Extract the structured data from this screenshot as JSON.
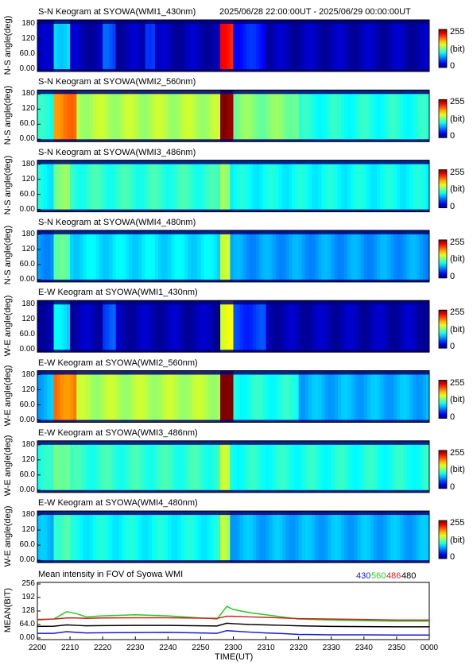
{
  "header": {
    "date_range": "2025/06/28 22:00:00UT - 2025/06/29 00:00:00UT"
  },
  "keograms": [
    {
      "title": "S-N Keogram at SYOWA(WMI1_430nm)",
      "ylabel": "N-S angle(deg)",
      "bands": [
        {
          "start": 2205,
          "end": 2210,
          "level": 0.35
        },
        {
          "start": 2220,
          "end": 2224,
          "level": 0.2
        },
        {
          "start": 2233,
          "end": 2236,
          "level": 0.2
        },
        {
          "start": 2256,
          "end": 2260,
          "level": 0.85
        },
        {
          "start": 2260,
          "end": 2310,
          "level": 0.15
        }
      ],
      "base": 0.05
    },
    {
      "title": "S-N Keogram at SYOWA(WMI2_560nm)",
      "ylabel": "N-S angle(deg)",
      "bands": [
        {
          "start": 2205,
          "end": 2212,
          "level": 0.75
        },
        {
          "start": 2212,
          "end": 2256,
          "level": 0.55
        },
        {
          "start": 2256,
          "end": 2260,
          "level": 1.0
        },
        {
          "start": 2260,
          "end": 2320,
          "level": 0.5
        }
      ],
      "base": 0.4
    },
    {
      "title": "S-N Keogram at SYOWA(WMI3_486nm)",
      "ylabel": "N-S angle(deg)",
      "bands": [
        {
          "start": 2205,
          "end": 2210,
          "level": 0.5
        },
        {
          "start": 2256,
          "end": 2259,
          "level": 0.55
        },
        {
          "start": 2210,
          "end": 2256,
          "level": 0.42
        }
      ],
      "base": 0.38
    },
    {
      "title": "S-N Keogram at SYOWA(WMI4_480nm)",
      "ylabel": "N-S angle(deg)",
      "bands": [
        {
          "start": 2205,
          "end": 2210,
          "level": 0.45
        },
        {
          "start": 2256,
          "end": 2259,
          "level": 0.6
        },
        {
          "start": 2210,
          "end": 2256,
          "level": 0.35
        }
      ],
      "base": 0.28
    },
    {
      "title": "E-W Keogram at SYOWA(WMI1_430nm)",
      "ylabel": "W-E angle(deg)",
      "bands": [
        {
          "start": 2205,
          "end": 2210,
          "level": 0.35
        },
        {
          "start": 2220,
          "end": 2224,
          "level": 0.2
        },
        {
          "start": 2256,
          "end": 2260,
          "level": 0.6
        },
        {
          "start": 2260,
          "end": 2310,
          "level": 0.18
        }
      ],
      "base": 0.05
    },
    {
      "title": "E-W Keogram at SYOWA(WMI2_560nm)",
      "ylabel": "W-E angle(deg)",
      "bands": [
        {
          "start": 2205,
          "end": 2212,
          "level": 0.75
        },
        {
          "start": 2212,
          "end": 2256,
          "level": 0.55
        },
        {
          "start": 2256,
          "end": 2260,
          "level": 1.0
        },
        {
          "start": 2260,
          "end": 2320,
          "level": 0.4
        }
      ],
      "base": 0.3
    },
    {
      "title": "E-W Keogram at SYOWA(WMI3_486nm)",
      "ylabel": "W-E angle(deg)",
      "bands": [
        {
          "start": 2205,
          "end": 2210,
          "level": 0.5
        },
        {
          "start": 2256,
          "end": 2259,
          "level": 0.55
        },
        {
          "start": 2210,
          "end": 2256,
          "level": 0.42
        }
      ],
      "base": 0.4
    },
    {
      "title": "E-W Keogram at SYOWA(WMI4_480nm)",
      "ylabel": "W-E angle(deg)",
      "bands": [
        {
          "start": 2205,
          "end": 2210,
          "level": 0.45
        },
        {
          "start": 2256,
          "end": 2259,
          "level": 0.55
        },
        {
          "start": 2210,
          "end": 2256,
          "level": 0.38
        }
      ],
      "base": 0.3
    }
  ],
  "keogram_yticks": [
    "180",
    "120",
    "60.0",
    "0.00"
  ],
  "colorbar": {
    "max": "255",
    "unit": "(bit)",
    "min": "0"
  },
  "mean_panel": {
    "title": "Mean intensity in FOV of Syowa WMI",
    "ylabel": "MEAN(BIT)",
    "yticks": [
      "256",
      "192",
      "128",
      "64.0",
      "0.00"
    ],
    "legend": [
      {
        "label": "430",
        "color": "#1a1ac8"
      },
      {
        "label": "560",
        "color": "#22cc22"
      },
      {
        "label": "486",
        "color": "#cc2222"
      },
      {
        "label": "480",
        "color": "#000000"
      }
    ]
  },
  "xaxis": {
    "ticks": [
      "2200",
      "2210",
      "2220",
      "2230",
      "2240",
      "2250",
      "2300",
      "2310",
      "2320",
      "2330",
      "2340",
      "2350",
      "0000"
    ],
    "label": "TIME(UT)"
  },
  "chart_data": {
    "type": "line",
    "title": "Mean intensity in FOV of Syowa WMI",
    "xlabel": "TIME(UT)",
    "ylabel": "MEAN(BIT)",
    "ylim": [
      0,
      256
    ],
    "x_minutes": [
      0,
      5,
      9,
      12,
      15,
      20,
      30,
      40,
      50,
      55,
      58,
      60,
      65,
      70,
      75,
      80,
      90,
      100,
      110,
      120
    ],
    "series": [
      {
        "name": "430",
        "color": "#1a1ac8",
        "values": [
          22,
          22,
          30,
          27,
          24,
          25,
          26,
          27,
          24,
          22,
          35,
          33,
          28,
          24,
          21,
          17,
          15,
          15,
          14,
          14
        ]
      },
      {
        "name": "560",
        "color": "#22cc22",
        "values": [
          85,
          90,
          125,
          115,
          100,
          105,
          110,
          105,
          95,
          90,
          150,
          135,
          120,
          110,
          100,
          90,
          85,
          82,
          80,
          80
        ]
      },
      {
        "name": "486",
        "color": "#cc2222",
        "values": [
          88,
          90,
          95,
          95,
          93,
          95,
          96,
          96,
          94,
          93,
          103,
          103,
          100,
          98,
          95,
          92,
          90,
          88,
          85,
          85
        ]
      },
      {
        "name": "480",
        "color": "#000000",
        "values": [
          55,
          56,
          62,
          60,
          58,
          59,
          60,
          60,
          58,
          57,
          70,
          68,
          64,
          62,
          60,
          58,
          55,
          54,
          53,
          53
        ]
      }
    ]
  }
}
